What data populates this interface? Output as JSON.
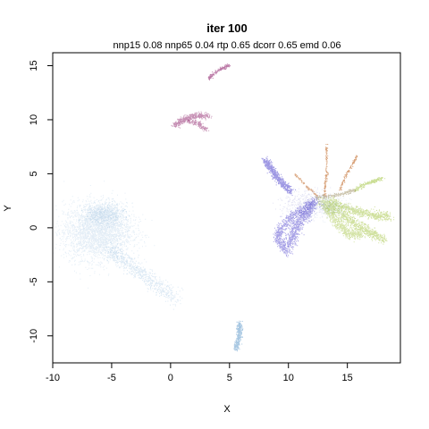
{
  "chart_data": {
    "type": "scatter",
    "title": "iter 100",
    "subtitle": "nnp15 0.08 nnp65 0.04 rtp 0.65 dcorr 0.65 emd 0.06",
    "xlabel": "X",
    "ylabel": "Y",
    "xlim": [
      -10,
      19.5
    ],
    "ylim": [
      -12.5,
      16.2
    ],
    "xticks": [
      "-10",
      "-5",
      "0",
      "5",
      "10",
      "15"
    ],
    "yticks": [
      "-10",
      "-5",
      "0",
      "5",
      "10",
      "15"
    ],
    "grid": false,
    "legend": "none",
    "clusters": [
      {
        "color": "#4f8fc6",
        "shape": "ellipse",
        "cx": -6.2,
        "cy": -0.3,
        "rx": 2.9,
        "ry": 2.6,
        "n": 2800,
        "opacity": 0.16
      },
      {
        "color": "#4f8fc6",
        "shape": "ellipse",
        "cx": -5.6,
        "cy": 1.3,
        "rx": 1.6,
        "ry": 1.0,
        "n": 700,
        "opacity": 0.18
      },
      {
        "color": "#4f8fc6",
        "shape": "path",
        "pts": [
          [
            -5.3,
            -2.0
          ],
          [
            -3.5,
            -3.4
          ],
          [
            -1.5,
            -5.0
          ],
          [
            0.5,
            -6.6
          ]
        ],
        "width": 0.7,
        "n": 700,
        "opacity": 0.2
      },
      {
        "color": "#4f8fc6",
        "shape": "path",
        "pts": [
          [
            5.8,
            -8.7
          ],
          [
            5.8,
            -10.0
          ],
          [
            5.5,
            -11.2
          ]
        ],
        "width": 0.22,
        "n": 320,
        "opacity": 0.5
      },
      {
        "color": "#8e1f6a",
        "shape": "path",
        "pts": [
          [
            3.2,
            13.8
          ],
          [
            3.6,
            14.3
          ],
          [
            4.4,
            14.8
          ],
          [
            5.0,
            15.1
          ]
        ],
        "width": 0.14,
        "n": 160,
        "opacity": 0.6
      },
      {
        "color": "#8e1f6a",
        "shape": "path",
        "pts": [
          [
            0.3,
            9.5
          ],
          [
            1.0,
            10.0
          ],
          [
            2.0,
            10.4
          ],
          [
            3.3,
            10.4
          ]
        ],
        "width": 0.28,
        "n": 420,
        "opacity": 0.5
      },
      {
        "color": "#8e1f6a",
        "shape": "path",
        "pts": [
          [
            1.5,
            9.9
          ],
          [
            2.3,
            9.7
          ],
          [
            3.0,
            9.1
          ]
        ],
        "width": 0.2,
        "n": 150,
        "opacity": 0.5
      },
      {
        "color": "#3b2fc8",
        "shape": "path",
        "pts": [
          [
            8.0,
            6.3
          ],
          [
            8.6,
            5.3
          ],
          [
            9.3,
            4.3
          ],
          [
            10.2,
            3.4
          ]
        ],
        "width": 0.3,
        "n": 600,
        "opacity": 0.5
      },
      {
        "color": "#3b2fc8",
        "shape": "path",
        "pts": [
          [
            12.2,
            2.5
          ],
          [
            11.4,
            1.3
          ],
          [
            10.6,
            0.0
          ],
          [
            10.0,
            -1.6
          ]
        ],
        "width": 0.5,
        "n": 700,
        "opacity": 0.45
      },
      {
        "color": "#3b2fc8",
        "shape": "path",
        "pts": [
          [
            12.0,
            2.3
          ],
          [
            10.4,
            1.2
          ],
          [
            9.3,
            0.0
          ],
          [
            9.0,
            -1.0
          ],
          [
            10.0,
            -2.3
          ]
        ],
        "width": 0.38,
        "n": 650,
        "opacity": 0.45
      },
      {
        "color": "#9fc23a",
        "shape": "path",
        "pts": [
          [
            12.8,
            2.5
          ],
          [
            14.0,
            1.6
          ],
          [
            15.5,
            0.5
          ],
          [
            16.8,
            -0.3
          ],
          [
            18.0,
            -1.1
          ]
        ],
        "width": 0.45,
        "n": 800,
        "opacity": 0.5
      },
      {
        "color": "#9fc23a",
        "shape": "path",
        "pts": [
          [
            13.6,
            2.5
          ],
          [
            15.0,
            1.8
          ],
          [
            16.8,
            1.3
          ],
          [
            18.5,
            1.0
          ]
        ],
        "width": 0.38,
        "n": 650,
        "opacity": 0.5
      },
      {
        "color": "#9fc23a",
        "shape": "path",
        "pts": [
          [
            13.0,
            2.0
          ],
          [
            14.0,
            0.6
          ],
          [
            15.0,
            -0.5
          ],
          [
            16.2,
            -0.6
          ]
        ],
        "width": 0.42,
        "n": 550,
        "opacity": 0.45
      },
      {
        "color": "#9fc23a",
        "shape": "path",
        "pts": [
          [
            15.6,
            3.5
          ],
          [
            16.5,
            4.1
          ],
          [
            17.3,
            4.4
          ],
          [
            18.0,
            4.6
          ]
        ],
        "width": 0.18,
        "n": 200,
        "opacity": 0.55
      },
      {
        "color": "#c6763a",
        "shape": "path",
        "pts": [
          [
            13.0,
            3.0
          ],
          [
            13.2,
            5.0
          ],
          [
            13.2,
            7.8
          ]
        ],
        "width": 0.1,
        "n": 120,
        "opacity": 0.7
      },
      {
        "color": "#c6763a",
        "shape": "path",
        "pts": [
          [
            14.3,
            3.5
          ],
          [
            14.9,
            5.0
          ],
          [
            15.8,
            6.7
          ]
        ],
        "width": 0.1,
        "n": 110,
        "opacity": 0.7
      },
      {
        "color": "#c6763a",
        "shape": "path",
        "pts": [
          [
            10.5,
            5.0
          ],
          [
            11.5,
            3.9
          ],
          [
            12.4,
            3.0
          ]
        ],
        "width": 0.1,
        "n": 90,
        "opacity": 0.6
      },
      {
        "color": "#9a8a5a",
        "shape": "path",
        "pts": [
          [
            12.3,
            2.8
          ],
          [
            13.6,
            3.0
          ],
          [
            14.8,
            3.2
          ],
          [
            15.6,
            3.6
          ]
        ],
        "width": 0.18,
        "n": 180,
        "opacity": 0.5
      },
      {
        "color": "#9a9ad8",
        "shape": "ellipse",
        "cx": 11.6,
        "cy": 2.2,
        "rx": 2.0,
        "ry": 1.3,
        "n": 450,
        "opacity": 0.28
      },
      {
        "color": "#b5c6e6",
        "shape": "ellipse",
        "cx": 13.4,
        "cy": 2.0,
        "rx": 1.8,
        "ry": 1.2,
        "n": 350,
        "opacity": 0.25
      }
    ]
  }
}
